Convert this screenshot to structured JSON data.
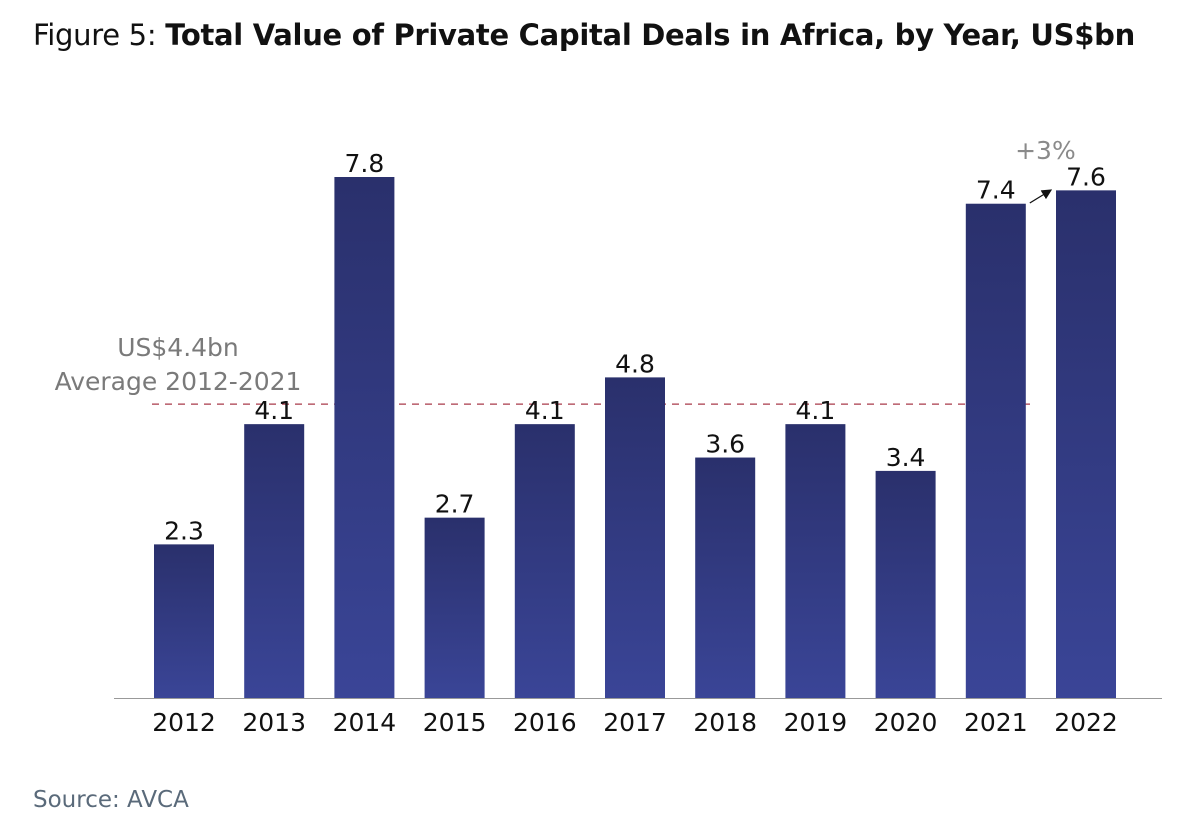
{
  "title_prefix": "Figure 5: ",
  "title_main": "Total Value of Private Capital Deals in Africa, by Year, US$bn",
  "source": "Source: AVCA",
  "chart_data": {
    "type": "bar",
    "categories": [
      "2012",
      "2013",
      "2014",
      "2015",
      "2016",
      "2017",
      "2018",
      "2019",
      "2020",
      "2021",
      "2022"
    ],
    "values": [
      2.3,
      4.1,
      7.8,
      2.7,
      4.1,
      4.8,
      3.6,
      4.1,
      3.4,
      7.4,
      7.6
    ],
    "data_labels": [
      "2.3",
      "4.1",
      "7.8",
      "2.7",
      "4.1",
      "4.8",
      "3.6",
      "4.1",
      "3.4",
      "7.4",
      "7.6"
    ],
    "ylim": [
      0,
      7.8
    ],
    "grid": false,
    "bar_color_top": "#2a306c",
    "bar_color_bottom": "#3a4597",
    "reference_line": {
      "value": 4.4,
      "label_line1": "US$4.4bn",
      "label_line2": "Average 2012-2021",
      "color": "#a83a4a",
      "from": "2012",
      "to": "2021"
    },
    "annotation": {
      "text": "+3%",
      "from": "2021",
      "to": "2022"
    }
  }
}
